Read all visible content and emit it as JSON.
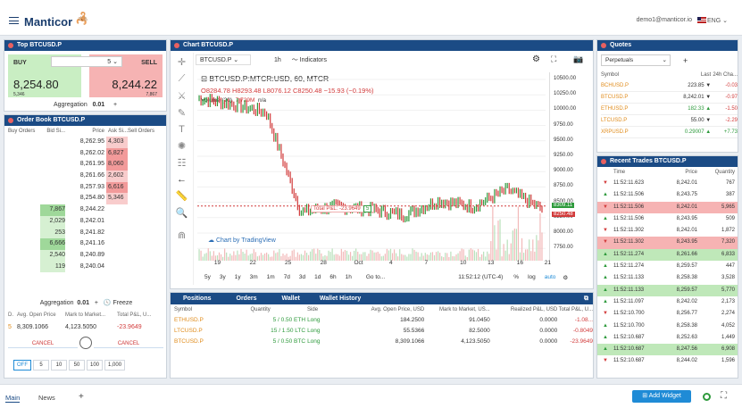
{
  "app": {
    "logo": "Manticor",
    "user": "demo1@manticor.io",
    "lang": "ENG"
  },
  "top_pair": {
    "title": "Top BTCUSD.P",
    "buy_label": "BUY",
    "sell_label": "SELL",
    "qty": "5",
    "buy_price": "8,254.80",
    "sell_price": "8,244.22",
    "buy_sub": "5,346",
    "sell_sub": "7,867",
    "agg_label": "Aggregation",
    "agg_value": "0.01",
    "agg_plus": "+"
  },
  "order_book": {
    "title": "Order Book BTCUSD.P",
    "headers": [
      "Buy Orders",
      "Bid Si...",
      "Price",
      "Ask Si...",
      "Sell Orders"
    ],
    "rows": [
      [
        "",
        "",
        "8,262.95",
        "4,303",
        "",
        "ask"
      ],
      [
        "",
        "",
        "8,262.02",
        "6,827",
        "",
        "ask"
      ],
      [
        "",
        "",
        "8,261.95",
        "8,060",
        "",
        "ask"
      ],
      [
        "",
        "",
        "8,261.66",
        "2,602",
        "",
        "ask"
      ],
      [
        "",
        "",
        "8,257.93",
        "6,616",
        "",
        "ask"
      ],
      [
        "",
        "",
        "8,254.80",
        "5,346",
        "",
        "ask"
      ],
      [
        "",
        "7,867",
        "8,244.22",
        "",
        "",
        "bid"
      ],
      [
        "",
        "2,029",
        "8,242.01",
        "",
        "",
        "bid"
      ],
      [
        "",
        "253",
        "8,241.82",
        "",
        "",
        "bid"
      ],
      [
        "",
        "6,666",
        "8,241.16",
        "",
        "",
        "bid"
      ],
      [
        "",
        "2,540",
        "8,240.89",
        "",
        "",
        "bid"
      ],
      [
        "",
        "119",
        "8,240.04",
        "",
        "",
        "bid"
      ]
    ],
    "agg_label": "Aggregation",
    "agg_value": "0.01",
    "freeze": "Freeze",
    "pos_headers": [
      "D.",
      "Avg. Open Price",
      "Mark to Market...",
      "Total P&L, U..."
    ],
    "pos_row": [
      "5",
      "8,309.1066",
      "4,123.5050",
      "-23.9649"
    ],
    "cancel1": "CANCEL",
    "cancel2": "CANCEL",
    "qty_buttons": [
      "OFF",
      "5",
      "10",
      "50",
      "100",
      "1,000"
    ]
  },
  "chart": {
    "title": "Chart BTCUSD.P",
    "symbol": "BTCUSD.P",
    "interval": "1h",
    "indicators": "Indicators",
    "legend_title": "BTCUSD.P:MTCR:USD, 60, MTCR",
    "ohlc": "O8284.78 H8293.48 L8076.12 C8250.48 −15.93 (−0.19%)",
    "volume": "Volume (20)",
    "volume_value": "7.729M",
    "volume_na": "n/a",
    "pnl_label": "Total P&L: -23.9649",
    "pnl_qty": "5",
    "watermark": "Chart by TradingView",
    "yaxis": [
      "10500.00",
      "10250.00",
      "10000.00",
      "9750.00",
      "9500.00",
      "9250.00",
      "9000.00",
      "8750.00",
      "8500.00",
      "8250.00",
      "8000.00",
      "7750.00"
    ],
    "price_tag_green": "8309.11",
    "price_tag_red": "8250.48",
    "xaxis": [
      "19",
      "22",
      "25",
      "28",
      "Oct",
      "4",
      "7",
      "10",
      "13",
      "16",
      "21"
    ],
    "ranges": [
      "5y",
      "3y",
      "1y",
      "3m",
      "1m",
      "7d",
      "3d",
      "1d",
      "6h",
      "1h"
    ],
    "goto": "Go to...",
    "time": "11:52:12 (UTC-4)",
    "pct": "%",
    "log": "log",
    "auto": "auto"
  },
  "chart_data": {
    "type": "line",
    "x": [
      "19",
      "22",
      "25",
      "28",
      "Oct",
      "4",
      "7",
      "10",
      "13",
      "16",
      "21"
    ],
    "series": [
      {
        "values": [
          10200,
          10100,
          9950,
          8200,
          8300,
          8250,
          8150,
          8400,
          8300,
          8600,
          8250
        ]
      }
    ],
    "ylim": [
      7600,
      10500
    ],
    "ylabel": "",
    "xlabel": ""
  },
  "positions": {
    "tabs": [
      "Positions",
      "Orders",
      "Wallet",
      "Wallet History"
    ],
    "headers": [
      "Symbol",
      "Quantity",
      "Side",
      "Avg. Open Price, USD",
      "Mark to Market, US...",
      "Realized P&L, USD",
      "Total P&L, U..."
    ],
    "rows": [
      [
        "ETHUSD.P",
        "5 / 0.50 ETH",
        "Long",
        "184.2500",
        "91.0450",
        "0.0000",
        "-1.08..."
      ],
      [
        "LTCUSD.P",
        "15 / 1.50 LTC",
        "Long",
        "55.5366",
        "82.5000",
        "0.0000",
        "-0.8049"
      ],
      [
        "BTCUSD.P",
        "5 / 0.50 BTC",
        "Long",
        "8,309.1066",
        "4,123.5050",
        "0.0000",
        "-23.9649"
      ]
    ]
  },
  "quotes": {
    "title": "Quotes",
    "dropdown": "Perpetuals",
    "headers": [
      "Symbol",
      "Last",
      "24h Cha..."
    ],
    "rows": [
      [
        "BCHUSD.P",
        "223.85 ▼",
        "-0.03"
      ],
      [
        "BTCUSD.P",
        "8,242.01 ▼",
        "-0.97"
      ],
      [
        "ETHUSD.P",
        "182.33 ▲",
        "-1.50"
      ],
      [
        "LTCUSD.P",
        "55.00 ▼",
        "-2.29"
      ],
      [
        "XRPUSD.P",
        "0.29007 ▲",
        "+7.73"
      ]
    ]
  },
  "recent_trades": {
    "title": "Recent Trades BTCUSD.P",
    "headers": [
      "Time",
      "Price",
      "Quantity"
    ],
    "rows": [
      [
        "▼",
        "11:52:11.623",
        "8,242.01",
        "767",
        "down",
        ""
      ],
      [
        "▲",
        "11:52:11.506",
        "8,243.75",
        "387",
        "up",
        ""
      ],
      [
        "▼",
        "11:52:11.506",
        "8,242.01",
        "5,965",
        "down",
        "hl"
      ],
      [
        "▲",
        "11:52:11.506",
        "8,243.95",
        "509",
        "up",
        ""
      ],
      [
        "▼",
        "11:52:11.302",
        "8,242.01",
        "1,872",
        "down",
        ""
      ],
      [
        "▼",
        "11:52:11.302",
        "8,243.95",
        "7,320",
        "down",
        "hl"
      ],
      [
        "▲",
        "11:52:11.274",
        "8,261.66",
        "6,833",
        "up",
        "hlg"
      ],
      [
        "▲",
        "11:52:11.274",
        "8,259.57",
        "447",
        "up",
        ""
      ],
      [
        "▲",
        "11:52:11.133",
        "8,258.38",
        "3,528",
        "up",
        ""
      ],
      [
        "▲",
        "11:52:11.133",
        "8,259.57",
        "5,770",
        "up",
        "hlg"
      ],
      [
        "▲",
        "11:52:11.097",
        "8,242.02",
        "2,173",
        "up",
        ""
      ],
      [
        "▼",
        "11:52:10.700",
        "8,256.77",
        "2,274",
        "down",
        ""
      ],
      [
        "▲",
        "11:52:10.700",
        "8,258.38",
        "4,052",
        "up",
        ""
      ],
      [
        "▲",
        "11:52:10.687",
        "8,252.63",
        "1,449",
        "up",
        ""
      ],
      [
        "▲",
        "11:52:10.687",
        "8,247.56",
        "6,908",
        "up",
        "hlg"
      ],
      [
        "▼",
        "11:52:10.687",
        "8,244.02",
        "1,596",
        "down",
        ""
      ]
    ]
  },
  "bottom": {
    "tab_main": "Main",
    "tab_news": "News",
    "add_tab": "+",
    "add_widget": "Add Widget"
  }
}
